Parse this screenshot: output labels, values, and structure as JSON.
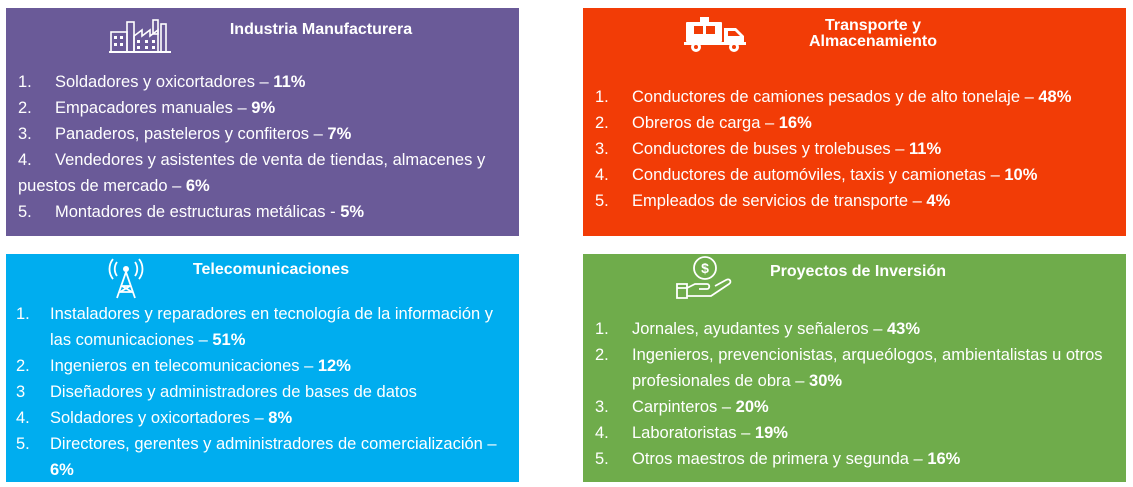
{
  "panels": [
    {
      "id": "manufacturing",
      "title": "Industria Manufacturera",
      "icon": "factory-icon",
      "color": "#6a5a98",
      "items": [
        {
          "n": "1.",
          "text": "Soldadores y oxicortadores – ",
          "pct": "11%"
        },
        {
          "n": "2.",
          "text": "Empacadores manuales – ",
          "pct": "9%"
        },
        {
          "n": "3.",
          "text": "Panaderos, pasteleros y confiteros – ",
          "pct": "7%"
        },
        {
          "n": "4.",
          "text": "Vendedores y asistentes de venta de tiendas, almacenes y puestos de mercado – ",
          "pct": "6%"
        },
        {
          "n": "5.",
          "text": "Montadores de estructuras metálicas - ",
          "pct": "5%"
        }
      ]
    },
    {
      "id": "transport",
      "title": "Transporte y\nAlmacenamiento",
      "icon": "delivery-truck-icon",
      "color": "#f23c06",
      "items": [
        {
          "n": "1.",
          "text": "Conductores de camiones pesados y de alto tonelaje – ",
          "pct": "48%"
        },
        {
          "n": "2.",
          "text": "Obreros de carga – ",
          "pct": "16%"
        },
        {
          "n": "3.",
          "text": "Conductores de buses y trolebuses – ",
          "pct": "11%"
        },
        {
          "n": "4.",
          "text": "Conductores de automóviles, taxis y camionetas – ",
          "pct": "10%"
        },
        {
          "n": "5.",
          "text": "Empleados de servicios de transporte – ",
          "pct": "4%"
        }
      ]
    },
    {
      "id": "telecom",
      "title": "Telecomunicaciones",
      "icon": "antenna-tower-icon",
      "color": "#00adef",
      "items": [
        {
          "n": "1.",
          "text": "Instaladores y reparadores en tecnología de la información y las comunicaciones – ",
          "pct": "51%"
        },
        {
          "n": "2.",
          "text": "Ingenieros en telecomunicaciones – ",
          "pct": "12%"
        },
        {
          "n": "3",
          "text": "Diseñadores y administradores de bases de datos",
          "pct": ""
        },
        {
          "n": "4.",
          "text": "Soldadores y oxicortadores – ",
          "pct": "8%"
        },
        {
          "n": "5.",
          "text": "Directores, gerentes y administradores de comercialización – ",
          "pct": "6%"
        }
      ]
    },
    {
      "id": "investment",
      "title": "Proyectos de Inversión",
      "icon": "money-hand-icon",
      "color": "#6fac4b",
      "items": [
        {
          "n": "1.",
          "text": "Jornales, ayudantes y señaleros – ",
          "pct": "43%"
        },
        {
          "n": "2.",
          "text": "Ingenieros, prevencionistas, arqueólogos, ambientalistas u otros profesionales de obra – ",
          "pct": "30%"
        },
        {
          "n": "3.",
          "text": "Carpinteros – ",
          "pct": "20%"
        },
        {
          "n": "4.",
          "text": "Laboratoristas – ",
          "pct": "19%"
        },
        {
          "n": "5.",
          "text": "Otros maestros de primera y segunda – ",
          "pct": "16%"
        }
      ]
    }
  ]
}
